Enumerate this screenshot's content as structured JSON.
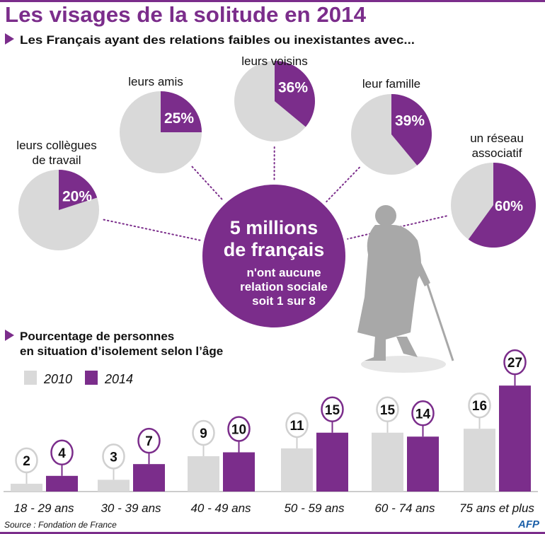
{
  "title": "Les visages de la solitude en 2014",
  "colors": {
    "accent": "#7b2d8b",
    "grey": "#d9d9d9",
    "silhouette": "#a8a8a8"
  },
  "chart_data": [
    {
      "type": "pie",
      "title": "Les Français ayant des relations faibles ou inexistantes avec...",
      "slices": [
        {
          "label": [
            "leurs collègues",
            "de travail"
          ],
          "value": 20,
          "display": "20%"
        },
        {
          "label": [
            "leurs amis"
          ],
          "value": 25,
          "display": "25%"
        },
        {
          "label": [
            "leurs voisins"
          ],
          "value": 36,
          "display": "36%"
        },
        {
          "label": [
            "leur famille"
          ],
          "value": 39,
          "display": "39%"
        },
        {
          "label": [
            "un réseau",
            "associatif"
          ],
          "value": 60,
          "display": "60%"
        }
      ],
      "center": {
        "headline": [
          "5 millions",
          "de français"
        ],
        "text": [
          "n'ont aucune",
          "relation sociale",
          "soit 1 sur 8"
        ]
      }
    },
    {
      "type": "bar",
      "title": [
        "Pourcentage de personnes",
        "en situation d’isolement selon l’âge"
      ],
      "categories": [
        "18 - 29 ans",
        "30 - 39 ans",
        "40 - 49 ans",
        "50 - 59 ans",
        "60 - 74 ans",
        "75 ans et plus"
      ],
      "series": [
        {
          "name": "2010",
          "values": [
            2,
            3,
            9,
            11,
            15,
            16
          ]
        },
        {
          "name": "2014",
          "values": [
            4,
            7,
            10,
            15,
            14,
            27
          ]
        }
      ],
      "ylim": [
        0,
        27
      ],
      "legend": "top-left"
    }
  ],
  "footer": {
    "source": "Source : Fondation de France",
    "logo": "AFP"
  }
}
